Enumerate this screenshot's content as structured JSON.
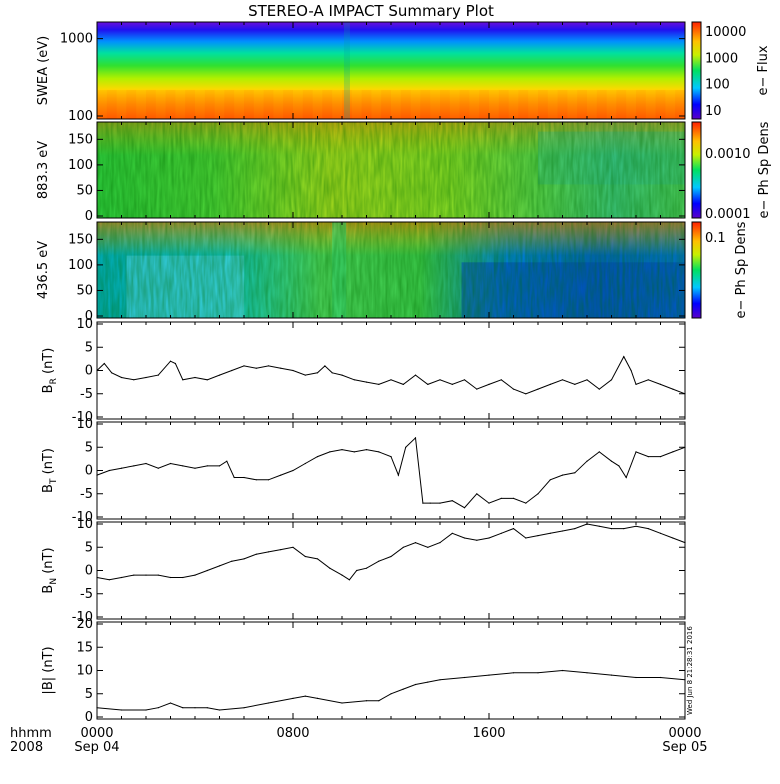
{
  "title": "STEREO-A IMPACT Summary Plot",
  "stamp": "Wed Jun  8 21:28:31 2016",
  "time_axis": {
    "row1_labels": [
      "hhmm",
      "0000",
      "0800",
      "1600",
      "0000"
    ],
    "row2_labels": [
      "2008",
      "Sep 04",
      "",
      "",
      "Sep 05"
    ]
  },
  "colors": {
    "line": "#000000",
    "axis": "#000000",
    "background": "#ffffff"
  },
  "chart_data": [
    {
      "type": "heatmap",
      "panel": "swea",
      "ylabel": "SWEA (eV)",
      "yscale": "log",
      "ylim": [
        100,
        1500
      ],
      "yticks": [
        "1000",
        "100"
      ],
      "xlim": [
        0,
        24
      ],
      "colorbar": {
        "label": "e− Flux",
        "scale": "log",
        "ticks": [
          "10000",
          "1000",
          "100",
          "10"
        ]
      }
    },
    {
      "type": "heatmap",
      "panel": "pad883",
      "ylabel": "883.3 eV",
      "ylim": [
        0,
        180
      ],
      "yticks": [
        "150",
        "100",
        "50",
        "0"
      ],
      "xlim": [
        0,
        24
      ],
      "colorbar": {
        "label": "e− Ph Sp Dens",
        "scale": "log",
        "ticks": [
          "0.0010",
          "0.0001"
        ]
      }
    },
    {
      "type": "heatmap",
      "panel": "pad436",
      "ylabel": "436.5 eV",
      "ylim": [
        0,
        180
      ],
      "yticks": [
        "150",
        "100",
        "50",
        "0"
      ],
      "xlim": [
        0,
        24
      ],
      "colorbar": {
        "label": "e− Ph Sp Dens",
        "scale": "log",
        "ticks": [
          "0.1"
        ]
      }
    },
    {
      "type": "line",
      "panel": "br",
      "ylabel": "B_R (nT)",
      "ylim": [
        -10,
        10
      ],
      "yticks": [
        "10",
        "5",
        "0",
        "-5",
        "-10"
      ],
      "x": [
        0,
        0.3,
        0.6,
        1,
        1.5,
        2,
        2.5,
        3,
        3.2,
        3.5,
        4,
        4.5,
        5,
        5.5,
        6,
        6.5,
        7,
        7.5,
        8,
        8.5,
        9,
        9.3,
        9.6,
        10,
        10.5,
        11,
        11.5,
        12,
        12.5,
        13,
        13.5,
        14,
        14.5,
        15,
        15.5,
        16,
        16.5,
        17,
        17.5,
        18,
        18.5,
        19,
        19.5,
        20,
        20.5,
        21,
        21.5,
        21.8,
        22,
        22.5,
        23,
        23.5,
        24
      ],
      "values": [
        0,
        1.5,
        -0.5,
        -1.5,
        -2,
        -1.5,
        -1,
        2,
        1.5,
        -2,
        -1.5,
        -2,
        -1,
        0,
        1,
        0.5,
        1,
        0.5,
        0,
        -1,
        -0.5,
        1,
        -0.5,
        -1,
        -2,
        -2.5,
        -3,
        -2,
        -3,
        -1,
        -3,
        -2,
        -3,
        -2,
        -4,
        -3,
        -2,
        -4,
        -5,
        -4,
        -3,
        -2,
        -3,
        -2,
        -4,
        -2,
        3,
        0,
        -3,
        -2,
        -3,
        -4,
        -5
      ]
    },
    {
      "type": "line",
      "panel": "bt",
      "ylabel": "B_T (nT)",
      "ylim": [
        -10,
        10
      ],
      "yticks": [
        "10",
        "5",
        "0",
        "-5",
        "-10"
      ],
      "x": [
        0,
        0.5,
        1,
        1.5,
        2,
        2.5,
        3,
        3.5,
        4,
        4.5,
        5,
        5.3,
        5.6,
        6,
        6.5,
        7,
        7.5,
        8,
        8.5,
        9,
        9.5,
        10,
        10.5,
        11,
        11.5,
        12,
        12.3,
        12.6,
        13,
        13.3,
        13.6,
        14,
        14.5,
        15,
        15.5,
        16,
        16.5,
        17,
        17.5,
        18,
        18.5,
        19,
        19.5,
        20,
        20.5,
        21,
        21.3,
        21.6,
        22,
        22.5,
        23,
        23.5,
        24
      ],
      "values": [
        -1,
        0,
        0.5,
        1,
        1.5,
        0.5,
        1.5,
        1,
        0.5,
        1,
        1,
        2,
        -1.5,
        -1.5,
        -2,
        -2,
        -1,
        0,
        1.5,
        3,
        4,
        4.5,
        4,
        4.5,
        4,
        3,
        -1,
        5,
        7,
        -7,
        -7,
        -7,
        -6.5,
        -8,
        -5,
        -7,
        -6,
        -6,
        -7,
        -5,
        -2,
        -1,
        -0.5,
        2,
        4,
        2,
        1,
        -1.5,
        4,
        3,
        3,
        4,
        5
      ]
    },
    {
      "type": "line",
      "panel": "bn",
      "ylabel": "B_N (nT)",
      "ylim": [
        -10,
        10
      ],
      "yticks": [
        "10",
        "5",
        "0",
        "-5",
        "-10"
      ],
      "x": [
        0,
        0.5,
        1,
        1.5,
        2,
        2.5,
        3,
        3.5,
        4,
        4.5,
        5,
        5.5,
        6,
        6.5,
        7,
        7.5,
        8,
        8.5,
        9,
        9.5,
        10,
        10.3,
        10.6,
        11,
        11.5,
        12,
        12.5,
        13,
        13.5,
        14,
        14.5,
        15,
        15.5,
        16,
        16.5,
        17,
        17.5,
        18,
        18.5,
        19,
        19.5,
        20,
        20.5,
        21,
        21.5,
        22,
        22.5,
        23,
        23.5,
        24
      ],
      "values": [
        -1.5,
        -2,
        -1.5,
        -1,
        -1,
        -1,
        -1.5,
        -1.5,
        -1,
        0,
        1,
        2,
        2.5,
        3.5,
        4,
        4.5,
        5,
        3,
        2.5,
        0.5,
        -1,
        -2,
        0,
        0.5,
        2,
        3,
        5,
        6,
        5,
        6,
        8,
        7,
        6.5,
        7,
        8,
        9,
        7,
        7.5,
        8,
        8.5,
        9,
        10,
        9.5,
        9,
        9,
        9.5,
        9,
        8,
        7,
        6
      ]
    },
    {
      "type": "line",
      "panel": "bmag",
      "ylabel": "|B| (nT)",
      "ylim": [
        0,
        20
      ],
      "yticks": [
        "20",
        "15",
        "10",
        "5",
        "0"
      ],
      "x": [
        0,
        1,
        2,
        2.5,
        3,
        3.5,
        4,
        4.5,
        5,
        6,
        7,
        8,
        8.5,
        9,
        10,
        11,
        11.5,
        12,
        12.5,
        13,
        13.5,
        14,
        15,
        16,
        17,
        18,
        19,
        20,
        21,
        22,
        23,
        24
      ],
      "values": [
        2,
        1.5,
        1.5,
        2,
        3,
        2,
        2,
        2,
        1.5,
        2,
        3,
        4,
        4.5,
        4,
        3,
        3.5,
        3.5,
        5,
        6,
        7,
        7.5,
        8,
        8.5,
        9,
        9.5,
        9.5,
        10,
        9.5,
        9,
        8.5,
        8.5,
        8
      ]
    }
  ]
}
